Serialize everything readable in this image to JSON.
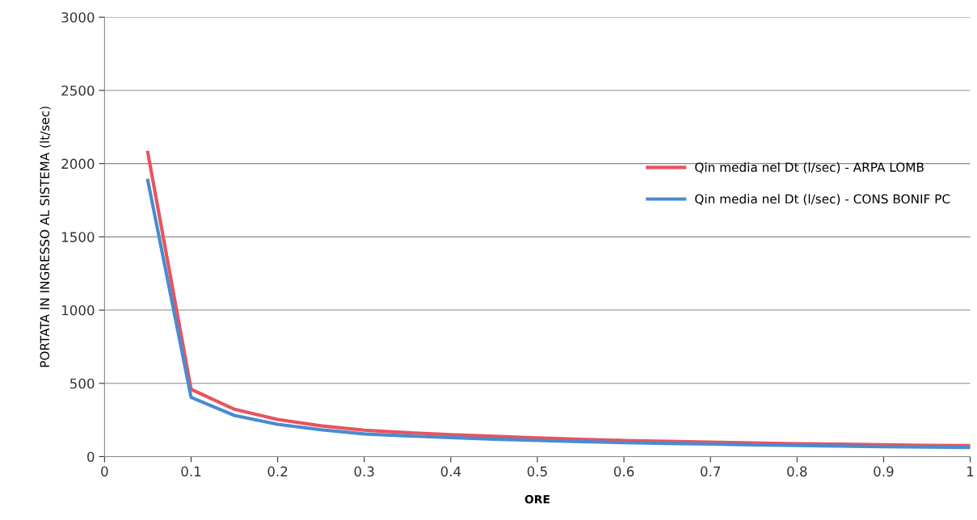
{
  "chart_data": {
    "type": "line",
    "xlabel": "ORE",
    "ylabel": "PORTATA IN INGRESSO AL SISTEMA (lt/sec)",
    "x": [
      0.05,
      0.1,
      0.15,
      0.2,
      0.25,
      0.3,
      0.35,
      0.4,
      0.45,
      0.5,
      0.55,
      0.6,
      0.65,
      0.7,
      0.75,
      0.8,
      0.85,
      0.9,
      0.95,
      1.0
    ],
    "series": [
      {
        "name": "Qin media nel Dt (l/sec) - ARPA LOMB",
        "color": "#e8545e",
        "values": [
          2075,
          459,
          323,
          253,
          210,
          180,
          163,
          150,
          138,
          128,
          118,
          110,
          104,
          98,
          93,
          88,
          84,
          80,
          77,
          75
        ]
      },
      {
        "name": "Qin media nel Dt (l/sec) - CONS BONIF PC",
        "color": "#4a8bd0",
        "values": [
          1885,
          404,
          281,
          220,
          183,
          155,
          141,
          130,
          119,
          110,
          102,
          95,
          90,
          85,
          80,
          76,
          72,
          68,
          65,
          62
        ]
      }
    ],
    "xlim": [
      0,
      1
    ],
    "xticks": [
      0,
      0.1,
      0.2,
      0.3,
      0.4,
      0.5,
      0.6,
      0.7,
      0.8,
      0.9,
      1
    ],
    "ylim": [
      0,
      3000
    ],
    "yticks": [
      0,
      500,
      1000,
      1500,
      2000,
      2500,
      3000
    ],
    "grid": "y",
    "legend": "right",
    "marker": "none",
    "line_style": "solid"
  }
}
